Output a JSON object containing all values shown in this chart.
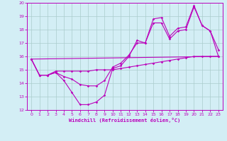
{
  "xlabel": "Windchill (Refroidissement éolien,°C)",
  "xlim": [
    -0.5,
    23.5
  ],
  "ylim": [
    12,
    20
  ],
  "xticks": [
    0,
    1,
    2,
    3,
    4,
    5,
    6,
    7,
    8,
    9,
    10,
    11,
    12,
    13,
    14,
    15,
    16,
    17,
    18,
    19,
    20,
    21,
    22,
    23
  ],
  "yticks": [
    12,
    13,
    14,
    15,
    16,
    17,
    18,
    19,
    20
  ],
  "bg_color": "#d3eef5",
  "line_color": "#bb00bb",
  "grid_color": "#aacccc",
  "line1_x": [
    0,
    1,
    2,
    3,
    4,
    5,
    6,
    7,
    8,
    9,
    10,
    11,
    12,
    13,
    14,
    15,
    16,
    17,
    18,
    19,
    20,
    21,
    22,
    23
  ],
  "line1_y": [
    15.8,
    14.6,
    14.6,
    14.8,
    14.2,
    13.3,
    12.4,
    12.4,
    12.6,
    13.1,
    15.1,
    15.3,
    16.0,
    17.2,
    17.0,
    18.8,
    18.9,
    17.5,
    18.1,
    18.2,
    19.8,
    18.3,
    17.9,
    16.5
  ],
  "line2_x": [
    0,
    1,
    2,
    3,
    4,
    5,
    6,
    7,
    8,
    9,
    10,
    11,
    12,
    13,
    14,
    15,
    16,
    17,
    18,
    19,
    20,
    21,
    22,
    23
  ],
  "line2_y": [
    15.8,
    14.6,
    14.6,
    14.9,
    14.9,
    14.9,
    14.9,
    14.9,
    15.0,
    15.0,
    15.0,
    15.1,
    15.2,
    15.3,
    15.4,
    15.5,
    15.6,
    15.7,
    15.8,
    15.9,
    16.0,
    16.0,
    16.0,
    16.0
  ],
  "line3_x": [
    0,
    23
  ],
  "line3_y": [
    15.8,
    16.0
  ],
  "line4_x": [
    0,
    1,
    2,
    3,
    4,
    5,
    6,
    7,
    8,
    9,
    10,
    11,
    12,
    13,
    14,
    15,
    16,
    17,
    18,
    19,
    20,
    21,
    22,
    23
  ],
  "line4_y": [
    15.8,
    14.6,
    14.6,
    14.8,
    14.5,
    14.3,
    13.9,
    13.8,
    13.8,
    14.2,
    15.2,
    15.5,
    16.1,
    17.0,
    17.0,
    18.5,
    18.5,
    17.3,
    17.9,
    18.0,
    19.7,
    18.3,
    17.9,
    16.0
  ]
}
